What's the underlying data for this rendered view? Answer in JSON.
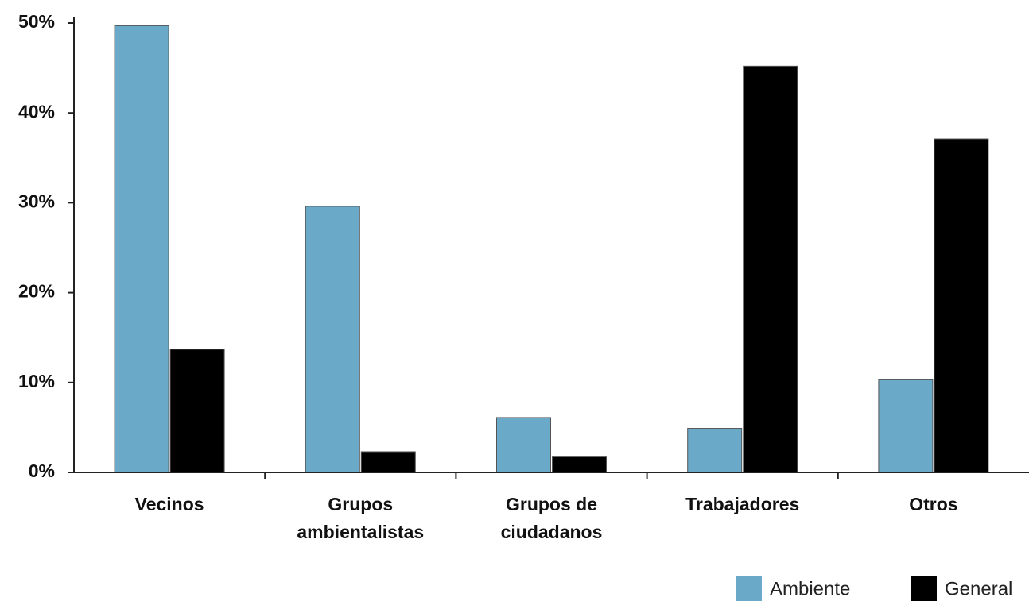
{
  "chart_data": {
    "type": "bar",
    "categories": [
      "Vecinos",
      "Grupos\nambientalistas",
      "Grupos de\nciudadanos",
      "Trabajadores",
      "Otros"
    ],
    "series": [
      {
        "name": "Ambiente",
        "color": "#6aaac8",
        "values": [
          49.7,
          29.6,
          6.1,
          4.9,
          10.3
        ]
      },
      {
        "name": "General",
        "color": "#000000",
        "values": [
          13.7,
          2.3,
          1.8,
          45.2,
          37.1
        ]
      }
    ],
    "ylim": [
      0,
      50
    ],
    "yticks": [
      {
        "value": 0,
        "label": "0%"
      },
      {
        "value": 10,
        "label": "10%"
      },
      {
        "value": 20,
        "label": "20%"
      },
      {
        "value": 30,
        "label": "30%"
      },
      {
        "value": 40,
        "label": "40%"
      },
      {
        "value": 50,
        "label": "50%"
      }
    ]
  }
}
